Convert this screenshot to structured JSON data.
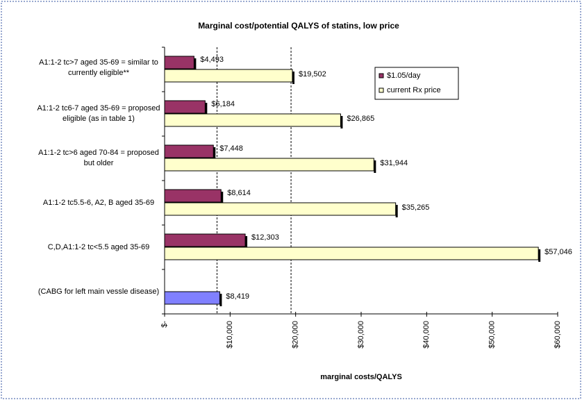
{
  "chart_data": {
    "type": "hbar",
    "title": "Marginal cost/potential QALYS of statins, low price",
    "x_label": "marginal costs/QALYS",
    "categories": [
      "A1:1-2 tc>7 aged 35-69 = similar to currently eligible**",
      "A1:1-2 tc6-7 aged 35-69 = proposed eligible (as in table 1)",
      "A1:1-2 tc>6 aged 70-84 = proposed but older",
      "A1:1-2 tc5.5-6, A2, B aged 35-69",
      "C,D,A1:1-2 tc<5.5 aged 35-69",
      "(CABG for left main vessle disease)"
    ],
    "series": [
      {
        "name": "$1.05/day",
        "color": "#993366",
        "values": [
          4493,
          6184,
          7448,
          8614,
          12303,
          null
        ],
        "value_labels": [
          "$4,493",
          "$6,184",
          "$7,448",
          "$8,614",
          "$12,303",
          null
        ]
      },
      {
        "name": "current Rx price",
        "color": "#ffffcc",
        "point_colors": [
          null,
          null,
          null,
          null,
          null,
          "#8080ff"
        ],
        "values": [
          19502,
          26865,
          31944,
          35265,
          57046,
          8419
        ],
        "value_labels": [
          "$19,502",
          "$26,865",
          "$31,944",
          "$35,265",
          "$57,046",
          "$8,419"
        ]
      }
    ],
    "xlim": [
      0,
      60000
    ],
    "xticks": [
      {
        "value": 0,
        "label": "$-"
      },
      {
        "value": 10000,
        "label": "$10,000"
      },
      {
        "value": 20000,
        "label": "$20,000"
      },
      {
        "value": 30000,
        "label": "$30,000"
      },
      {
        "value": 40000,
        "label": "$40,000"
      },
      {
        "value": 50000,
        "label": "$50,000"
      },
      {
        "value": 60000,
        "label": "$60,000"
      }
    ],
    "reference_lines": [
      8000,
      19300
    ],
    "legend_position": "top-right"
  }
}
